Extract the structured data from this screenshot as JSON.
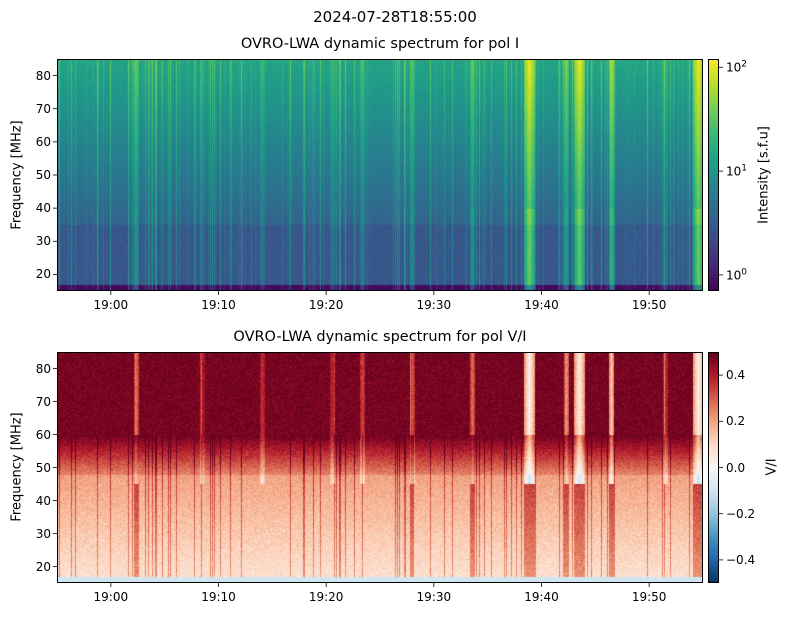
{
  "suptitle": "2024-07-28T18:55:00",
  "chart_data": [
    {
      "type": "heatmap",
      "title": "OVRO-LWA dynamic spectrum for pol I",
      "xlabel": "",
      "ylabel": "Frequency [MHz]",
      "colorbar_label": "Intensity [s.f.u]",
      "colormap": "viridis",
      "color_scale": "log",
      "clim": [
        0.7,
        120
      ],
      "colorbar_ticks": [
        "10^0",
        "10^1",
        "10^2"
      ],
      "colorbar_tick_values": [
        1,
        10,
        100
      ],
      "xlim": [
        "18:55",
        "19:55"
      ],
      "ylim": [
        15,
        85
      ],
      "xticks": [
        "19:00",
        "19:10",
        "19:20",
        "19:30",
        "19:40",
        "19:50"
      ],
      "yticks": [
        20,
        30,
        40,
        50,
        60,
        70,
        80
      ],
      "bursts_min_after_1855": [
        7.3,
        13.5,
        19.0,
        25.5,
        28.3,
        33.0,
        38.5,
        43.8,
        47.3,
        48.5,
        51.5,
        56.5,
        59.5
      ],
      "burst_peak_sfu": [
        25,
        12,
        15,
        14,
        18,
        20,
        25,
        110,
        35,
        100,
        60,
        15,
        110
      ]
    },
    {
      "type": "heatmap",
      "title": "OVRO-LWA dynamic spectrum for pol V/I",
      "xlabel": "",
      "ylabel": "Frequency [MHz]",
      "colorbar_label": "V/I",
      "colormap": "RdBu_r",
      "color_scale": "linear",
      "clim": [
        -0.5,
        0.5
      ],
      "colorbar_ticks": [
        "−0.4",
        "−0.2",
        "0.0",
        "0.2",
        "0.4"
      ],
      "colorbar_tick_values": [
        -0.4,
        -0.2,
        0.0,
        0.2,
        0.4
      ],
      "xlim": [
        "18:55",
        "19:55"
      ],
      "ylim": [
        15,
        85
      ],
      "xticks": [
        "19:00",
        "19:10",
        "19:20",
        "19:30",
        "19:40",
        "19:50"
      ],
      "yticks": [
        20,
        30,
        40,
        50,
        60,
        70,
        80
      ]
    }
  ]
}
